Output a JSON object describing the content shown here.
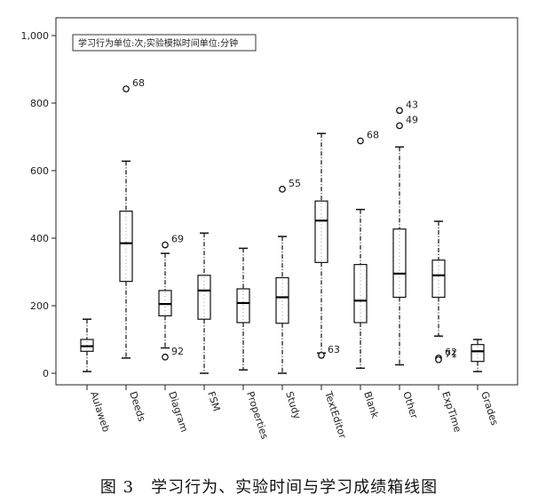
{
  "caption": "图 3　学习行为、实验时间与学习成绩箱线图",
  "chart_data": {
    "type": "box",
    "annotation": "学习行为单位:次;实验模拟时间单位:分钟",
    "ylim": [
      0,
      1000
    ],
    "yticks": [
      0,
      200,
      400,
      600,
      800,
      1000
    ],
    "ytick_labels": [
      "0",
      "200",
      "400",
      "600",
      "800",
      "1,000"
    ],
    "grid": false,
    "categories": [
      "Aulaweb",
      "Deeds",
      "Diagram",
      "FSM",
      "Properties",
      "Study",
      "TextEditor",
      "Blank",
      "Other",
      "ExpTime",
      "Grades"
    ],
    "boxes": [
      {
        "min": 5,
        "q1": 65,
        "median": 80,
        "q3": 100,
        "max": 160,
        "outliers": []
      },
      {
        "min": 45,
        "q1": 272,
        "median": 385,
        "q3": 480,
        "max": 628,
        "outliers": [
          {
            "value": 842,
            "label": "68"
          }
        ]
      },
      {
        "min": 75,
        "q1": 170,
        "median": 205,
        "q3": 245,
        "max": 355,
        "outliers": [
          {
            "value": 380,
            "label": "69"
          },
          {
            "value": 48,
            "label": "92"
          }
        ]
      },
      {
        "min": 0,
        "q1": 160,
        "median": 245,
        "q3": 290,
        "max": 415,
        "outliers": []
      },
      {
        "min": 10,
        "q1": 150,
        "median": 208,
        "q3": 250,
        "max": 370,
        "outliers": []
      },
      {
        "min": 0,
        "q1": 148,
        "median": 225,
        "q3": 283,
        "max": 405,
        "outliers": [
          {
            "value": 545,
            "label": "55"
          }
        ]
      },
      {
        "min": 60,
        "q1": 328,
        "median": 452,
        "q3": 510,
        "max": 710,
        "outliers": [
          {
            "value": 53,
            "label": "63"
          }
        ]
      },
      {
        "min": 15,
        "q1": 150,
        "median": 215,
        "q3": 322,
        "max": 485,
        "outliers": [
          {
            "value": 688,
            "label": "68"
          }
        ]
      },
      {
        "min": 25,
        "q1": 225,
        "median": 295,
        "q3": 427,
        "max": 670,
        "outliers": [
          {
            "value": 778,
            "label": "43"
          },
          {
            "value": 733,
            "label": "49"
          }
        ]
      },
      {
        "min": 110,
        "q1": 225,
        "median": 290,
        "q3": 335,
        "max": 450,
        "outliers": [
          {
            "value": 45,
            "label": "62"
          },
          {
            "value": 40,
            "label": "71"
          }
        ]
      },
      {
        "min": 5,
        "q1": 35,
        "median": 65,
        "q3": 85,
        "max": 100,
        "outliers": []
      }
    ]
  }
}
